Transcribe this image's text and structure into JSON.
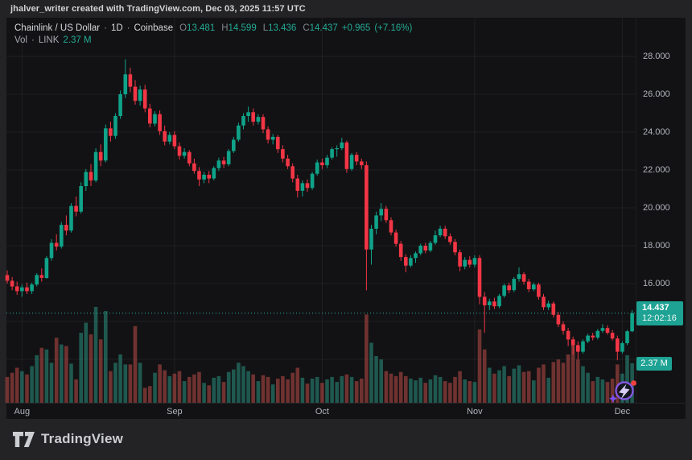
{
  "watermark": "jhalver_writer created with TradingView.com, Dec 03, 2025 11:57 UTC",
  "header": {
    "symbol": "Chainlink / US Dollar",
    "dot": "·",
    "interval": "1D",
    "exchange": "Coinbase",
    "open_label": "O",
    "open": "13.481",
    "high_label": "H",
    "high": "14.599",
    "low_label": "L",
    "low": "13.436",
    "close_label": "C",
    "close": "14.437",
    "change": "+0.965",
    "change_pct": "(+7.16%)",
    "vol_label": "Vol",
    "vol_symbol": "LINK",
    "vol_value": "2.37 M"
  },
  "price_axis": {
    "labels": [
      "28.000",
      "26.000",
      "24.000",
      "22.000",
      "20.000",
      "18.000",
      "16.000"
    ]
  },
  "time_axis": [
    "Aug",
    "Sep",
    "Oct",
    "Nov",
    "Dec"
  ],
  "price_label": {
    "price": "14.437",
    "countdown": "12:02:16"
  },
  "volume_label": "2.37 M",
  "logo": {
    "text": "TradingView"
  },
  "colors": {
    "up": "#0fa389",
    "down": "#f23645",
    "vol_up": "rgba(44,158,138,0.50)",
    "vol_down": "rgba(204,82,76,0.50)",
    "grid": "rgba(250,250,250,0.06)",
    "dotted_line": "#2bb3a0",
    "label_bg": "#1da293",
    "sticker_purple": "#8457e0",
    "sticker_red": "#f3403f"
  },
  "chart_data": {
    "type": "candlestick",
    "symbol": "LINK/USD",
    "exchange": "Coinbase",
    "interval": "1D",
    "title": "Chainlink / US Dollar daily candles with volume, Aug–Dec 2025",
    "start_date": "2025-07-29",
    "end_date": "2025-12-03",
    "current_price": 14.437,
    "current_volume_m": 2.37,
    "y_axis": {
      "ticks": [
        28,
        26,
        24,
        22,
        20,
        18,
        16
      ],
      "grid": [
        28,
        26,
        24,
        22,
        20,
        18,
        16,
        14,
        12
      ],
      "unit": "USD"
    },
    "volume_unit": "M",
    "months": [
      {
        "label": "Aug",
        "index": 3
      },
      {
        "label": "Sep",
        "index": 34
      },
      {
        "label": "Oct",
        "index": 64
      },
      {
        "label": "Nov",
        "index": 95
      },
      {
        "label": "Dec",
        "index": 125
      }
    ],
    "candle_fields": [
      "open",
      "high",
      "low",
      "close",
      "volume_m"
    ],
    "candles": [
      [
        16.45,
        16.7,
        16.0,
        16.15,
        1.55
      ],
      [
        16.15,
        16.35,
        15.65,
        15.85,
        1.8
      ],
      [
        15.85,
        16.1,
        15.4,
        15.6,
        2.1
      ],
      [
        15.6,
        15.95,
        15.3,
        15.8,
        1.9
      ],
      [
        15.8,
        16.05,
        15.45,
        15.6,
        1.7
      ],
      [
        15.6,
        16.05,
        15.45,
        15.95,
        2.2
      ],
      [
        15.95,
        16.55,
        15.85,
        16.45,
        2.85
      ],
      [
        16.45,
        16.8,
        16.1,
        16.3,
        3.3
      ],
      [
        16.3,
        17.45,
        16.25,
        17.35,
        3.2
      ],
      [
        17.35,
        18.35,
        17.2,
        18.15,
        2.4
      ],
      [
        18.15,
        18.6,
        17.75,
        17.95,
        3.9
      ],
      [
        17.95,
        19.25,
        17.85,
        19.1,
        3.5
      ],
      [
        19.1,
        19.6,
        18.55,
        18.8,
        3.4
      ],
      [
        18.8,
        20.25,
        18.7,
        20.1,
        2.35
      ],
      [
        20.1,
        20.6,
        19.55,
        19.8,
        1.4
      ],
      [
        19.8,
        21.35,
        19.7,
        21.15,
        4.2
      ],
      [
        21.15,
        22.05,
        20.9,
        21.9,
        4.8
      ],
      [
        21.9,
        22.3,
        21.15,
        21.45,
        4.1
      ],
      [
        21.45,
        23.15,
        21.35,
        22.95,
        5.75
      ],
      [
        22.95,
        23.35,
        22.2,
        22.5,
        3.8
      ],
      [
        22.5,
        24.4,
        22.4,
        24.2,
        5.5
      ],
      [
        24.2,
        24.55,
        23.5,
        23.8,
        1.9
      ],
      [
        23.8,
        25.0,
        23.65,
        24.85,
        2.4
      ],
      [
        24.85,
        26.2,
        24.7,
        26.0,
        2.9
      ],
      [
        26.0,
        27.85,
        25.8,
        27.05,
        2.3
      ],
      [
        27.05,
        27.4,
        26.1,
        26.4,
        2.3
      ],
      [
        26.4,
        26.75,
        25.45,
        25.65,
        4.6
      ],
      [
        25.65,
        26.45,
        25.4,
        26.25,
        2.4
      ],
      [
        26.25,
        26.5,
        25.05,
        25.25,
        0.9
      ],
      [
        25.25,
        25.5,
        24.25,
        24.45,
        1.0
      ],
      [
        24.45,
        25.1,
        24.3,
        24.95,
        1.8
      ],
      [
        24.95,
        25.15,
        23.85,
        24.05,
        2.3
      ],
      [
        24.05,
        24.35,
        23.3,
        23.5,
        1.95
      ],
      [
        23.5,
        24.0,
        23.35,
        23.85,
        1.6
      ],
      [
        23.85,
        24.05,
        23.1,
        23.25,
        1.75
      ],
      [
        23.25,
        23.45,
        22.55,
        22.75,
        1.9
      ],
      [
        22.75,
        23.15,
        22.6,
        22.95,
        1.3
      ],
      [
        22.95,
        23.05,
        22.2,
        22.35,
        1.55
      ],
      [
        22.35,
        22.6,
        21.8,
        21.95,
        1.7
      ],
      [
        21.95,
        22.15,
        21.15,
        21.5,
        1.85
      ],
      [
        21.5,
        21.9,
        21.3,
        21.75,
        1.2
      ],
      [
        21.75,
        21.95,
        21.3,
        21.55,
        1.05
      ],
      [
        21.55,
        22.2,
        21.45,
        22.1,
        1.5
      ],
      [
        22.1,
        22.65,
        21.95,
        22.5,
        1.6
      ],
      [
        22.5,
        22.7,
        22.1,
        22.3,
        1.25
      ],
      [
        22.3,
        23.1,
        22.2,
        23.0,
        1.85
      ],
      [
        23.0,
        23.75,
        22.9,
        23.6,
        2.0
      ],
      [
        23.6,
        24.5,
        23.5,
        24.35,
        2.4
      ],
      [
        24.35,
        25.0,
        24.15,
        24.85,
        2.2
      ],
      [
        24.85,
        25.35,
        24.55,
        25.05,
        1.9
      ],
      [
        25.05,
        25.25,
        24.35,
        24.55,
        1.7
      ],
      [
        24.55,
        24.95,
        24.4,
        24.8,
        1.3
      ],
      [
        24.8,
        24.95,
        23.95,
        24.15,
        1.65
      ],
      [
        24.15,
        24.3,
        23.4,
        23.6,
        1.55
      ],
      [
        23.6,
        23.9,
        23.35,
        23.75,
        1.1
      ],
      [
        23.75,
        23.85,
        22.9,
        23.1,
        1.45
      ],
      [
        23.1,
        23.3,
        22.4,
        22.6,
        1.6
      ],
      [
        22.6,
        22.8,
        22.05,
        22.2,
        1.4
      ],
      [
        22.2,
        22.35,
        21.35,
        21.55,
        1.8
      ],
      [
        21.55,
        21.75,
        20.55,
        20.9,
        2.1
      ],
      [
        20.9,
        21.45,
        20.6,
        21.3,
        1.5
      ],
      [
        21.3,
        21.5,
        20.85,
        21.05,
        1.15
      ],
      [
        21.05,
        21.9,
        20.95,
        21.8,
        1.45
      ],
      [
        21.8,
        22.55,
        21.7,
        22.4,
        1.55
      ],
      [
        22.4,
        22.6,
        22.05,
        22.25,
        1.2
      ],
      [
        22.25,
        22.8,
        22.1,
        22.65,
        1.4
      ],
      [
        22.65,
        23.2,
        22.55,
        23.1,
        1.55
      ],
      [
        23.1,
        23.3,
        22.7,
        23.15,
        1.25
      ],
      [
        23.15,
        23.7,
        23.05,
        23.45,
        1.6
      ],
      [
        23.45,
        23.55,
        21.85,
        22.05,
        1.7
      ],
      [
        22.05,
        22.9,
        21.95,
        22.8,
        1.55
      ],
      [
        22.8,
        22.95,
        22.25,
        22.45,
        1.3
      ],
      [
        22.45,
        22.6,
        22.05,
        22.25,
        1.45
      ],
      [
        22.25,
        22.45,
        15.65,
        17.8,
        5.3
      ],
      [
        17.8,
        19.1,
        17.0,
        18.9,
        3.6
      ],
      [
        18.9,
        19.8,
        18.6,
        19.6,
        2.8
      ],
      [
        19.6,
        20.25,
        19.3,
        19.95,
        2.6
      ],
      [
        19.95,
        20.1,
        19.2,
        19.35,
        1.9
      ],
      [
        19.35,
        19.5,
        18.55,
        18.7,
        1.75
      ],
      [
        18.7,
        18.85,
        17.95,
        18.1,
        1.6
      ],
      [
        18.1,
        18.25,
        17.2,
        17.4,
        1.85
      ],
      [
        17.4,
        17.55,
        16.6,
        16.95,
        1.6
      ],
      [
        16.95,
        17.5,
        16.85,
        17.35,
        1.45
      ],
      [
        17.35,
        17.7,
        17.1,
        17.6,
        1.35
      ],
      [
        17.6,
        18.1,
        17.5,
        18.0,
        1.5
      ],
      [
        18.0,
        18.15,
        17.6,
        17.75,
        1.2
      ],
      [
        17.75,
        18.25,
        17.65,
        18.15,
        1.4
      ],
      [
        18.15,
        18.8,
        18.05,
        18.55,
        1.65
      ],
      [
        18.55,
        19.05,
        18.45,
        18.9,
        1.55
      ],
      [
        18.9,
        19.05,
        18.35,
        18.5,
        1.3
      ],
      [
        18.5,
        18.65,
        18.05,
        18.2,
        1.2
      ],
      [
        18.2,
        18.35,
        17.5,
        17.65,
        1.55
      ],
      [
        17.65,
        17.8,
        16.65,
        16.9,
        1.9
      ],
      [
        16.9,
        17.4,
        16.75,
        17.25,
        1.4
      ],
      [
        17.25,
        17.45,
        16.85,
        17.0,
        1.3
      ],
      [
        17.0,
        17.5,
        16.85,
        17.35,
        1.25
      ],
      [
        17.35,
        17.5,
        14.9,
        15.3,
        4.4
      ],
      [
        15.3,
        15.55,
        13.4,
        14.85,
        3.2
      ],
      [
        14.85,
        15.2,
        14.6,
        15.05,
        2.1
      ],
      [
        15.05,
        15.25,
        14.65,
        14.8,
        1.75
      ],
      [
        14.8,
        15.45,
        14.7,
        15.35,
        1.95
      ],
      [
        15.35,
        16.0,
        15.25,
        15.9,
        2.2
      ],
      [
        15.9,
        16.05,
        15.5,
        15.65,
        1.6
      ],
      [
        15.65,
        16.35,
        15.55,
        16.25,
        2.05
      ],
      [
        16.25,
        16.85,
        16.1,
        16.5,
        2.25
      ],
      [
        16.5,
        16.6,
        15.95,
        16.1,
        1.85
      ],
      [
        16.1,
        16.25,
        15.55,
        15.7,
        1.9
      ],
      [
        15.7,
        16.05,
        15.6,
        15.95,
        1.35
      ],
      [
        15.95,
        16.05,
        15.15,
        15.3,
        2.1
      ],
      [
        15.3,
        15.45,
        14.6,
        14.75,
        2.3
      ],
      [
        14.75,
        15.1,
        14.6,
        14.95,
        1.5
      ],
      [
        14.95,
        15.05,
        14.2,
        14.35,
        2.45
      ],
      [
        14.35,
        14.5,
        13.7,
        13.85,
        2.6
      ],
      [
        13.85,
        14.0,
        13.3,
        13.5,
        2.4
      ],
      [
        13.5,
        13.65,
        12.7,
        13.05,
        2.9
      ],
      [
        13.05,
        13.2,
        12.25,
        12.75,
        3.5
      ],
      [
        12.75,
        12.95,
        12.0,
        12.4,
        2.6
      ],
      [
        12.4,
        13.05,
        12.3,
        12.95,
        2.2
      ],
      [
        12.95,
        13.35,
        12.85,
        13.25,
        1.8
      ],
      [
        13.25,
        13.4,
        13.0,
        13.15,
        1.3
      ],
      [
        13.15,
        13.6,
        13.05,
        13.5,
        1.55
      ],
      [
        13.5,
        13.85,
        13.4,
        13.65,
        1.4
      ],
      [
        13.65,
        13.8,
        13.3,
        13.4,
        1.25
      ],
      [
        13.4,
        13.55,
        13.0,
        13.1,
        1.45
      ],
      [
        13.1,
        13.25,
        11.95,
        12.4,
        2.3
      ],
      [
        12.4,
        12.95,
        12.3,
        12.85,
        1.75
      ],
      [
        12.85,
        13.55,
        12.75,
        13.48,
        2.85
      ],
      [
        13.481,
        14.599,
        13.436,
        14.437,
        2.37
      ]
    ]
  }
}
